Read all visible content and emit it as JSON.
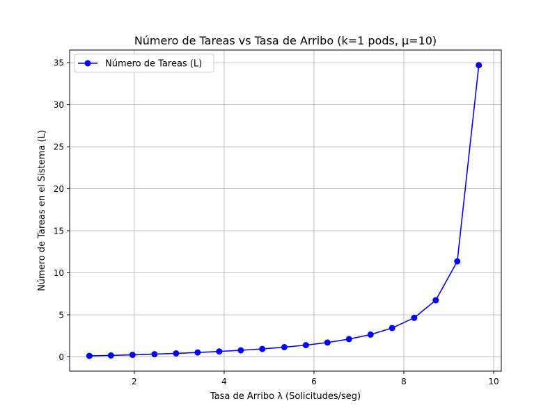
{
  "chart_data": {
    "type": "line",
    "title": "Número de Tareas vs Tasa de Arribo (k=1 pods, μ=10)",
    "xlabel": "Tasa de Arribo λ (Solicitudes/seg)",
    "ylabel": "Número de Tareas en el Sistema (L)",
    "xlim": [
      0.56,
      10.17
    ],
    "ylim": [
      -1.7,
      36.5
    ],
    "xticks": [
      2,
      4,
      6,
      8,
      10
    ],
    "yticks": [
      0,
      5,
      10,
      15,
      20,
      25,
      30,
      35
    ],
    "grid": true,
    "legend_position": "top-left",
    "series": [
      {
        "name": "Número de Tareas (L)",
        "color": "#0000ff",
        "marker": "circle",
        "x": [
          1.0,
          1.48,
          1.96,
          2.45,
          2.93,
          3.41,
          3.89,
          4.37,
          4.85,
          5.34,
          5.82,
          6.3,
          6.78,
          7.26,
          7.74,
          8.23,
          8.71,
          9.19,
          9.67
        ],
        "y": [
          0.11,
          0.17,
          0.24,
          0.32,
          0.41,
          0.52,
          0.64,
          0.78,
          0.94,
          1.15,
          1.39,
          1.7,
          2.11,
          2.65,
          3.43,
          4.64,
          6.73,
          11.36,
          34.7
        ]
      }
    ]
  }
}
